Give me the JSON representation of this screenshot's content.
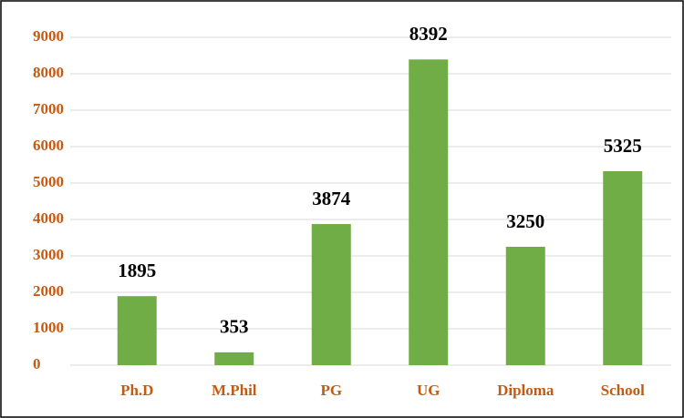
{
  "chart_data": {
    "type": "bar",
    "categories": [
      "Ph.D",
      "M.Phil",
      "PG",
      "UG",
      "Diploma",
      "School"
    ],
    "values": [
      1895,
      353,
      3874,
      8392,
      3250,
      5325
    ],
    "color": "#70ad47",
    "ylim": [
      0,
      9000
    ],
    "yticks": [
      0,
      1000,
      2000,
      3000,
      4000,
      5000,
      6000,
      7000,
      8000,
      9000
    ],
    "grid": true
  }
}
